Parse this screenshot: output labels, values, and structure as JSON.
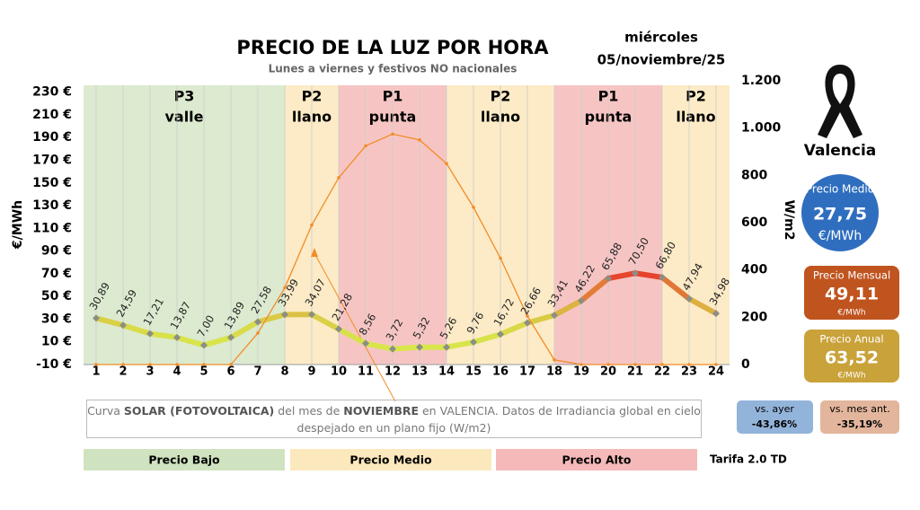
{
  "chart_data": {
    "type": "line",
    "title": "PRECIO DE LA LUZ POR HORA",
    "subtitle": "Lunes a viernes y festivos NO nacionales",
    "date_weekday": "miércoles",
    "date": "05/noviembre/25",
    "y_label": "€/MWh",
    "y2_label": "W/m2",
    "categories": [
      1,
      2,
      3,
      4,
      5,
      6,
      7,
      8,
      9,
      10,
      11,
      12,
      13,
      14,
      15,
      16,
      17,
      18,
      19,
      20,
      21,
      22,
      23,
      24
    ],
    "series": [
      {
        "name": "Precio",
        "color_low": "#d8e64a",
        "color_high": "#e8392b",
        "values": [
          30.89,
          24.59,
          17.21,
          13.87,
          7.0,
          13.89,
          27.58,
          33.99,
          34.07,
          21.28,
          8.56,
          3.72,
          5.32,
          5.26,
          9.76,
          16.72,
          26.66,
          33.41,
          46.22,
          65.88,
          70.5,
          66.8,
          47.94,
          34.98
        ],
        "value_labels": [
          "30,89",
          "24,59",
          "17,21",
          "13,87",
          "7,00",
          "13,89",
          "27,58",
          "33,99",
          "34,07",
          "21,28",
          "8,56",
          "3,72",
          "5,32",
          "5,26",
          "9,76",
          "16,72",
          "26,66",
          "33,41",
          "46,22",
          "65,88",
          "70,50",
          "66,80",
          "47,94",
          "34,98"
        ]
      },
      {
        "name": "Solar",
        "color": "#f28c28",
        "axis": "y2",
        "values": [
          0,
          0,
          0,
          0,
          0,
          0,
          133,
          325,
          590,
          790,
          925,
          975,
          950,
          850,
          665,
          450,
          205,
          20,
          0,
          0,
          0,
          0,
          0,
          0
        ]
      }
    ],
    "ylim": [
      -10,
      240
    ],
    "yticks": [
      {
        "value": -10,
        "label": "-10 €"
      },
      {
        "value": 10,
        "label": "10 €"
      },
      {
        "value": 30,
        "label": "30 €"
      },
      {
        "value": 50,
        "label": "50 €"
      },
      {
        "value": 70,
        "label": "70 €"
      },
      {
        "value": 90,
        "label": "90 €"
      },
      {
        "value": 110,
        "label": "110 €"
      },
      {
        "value": 130,
        "label": "130 €"
      },
      {
        "value": 150,
        "label": "150 €"
      },
      {
        "value": 170,
        "label": "170 €"
      },
      {
        "value": 190,
        "label": "190 €"
      },
      {
        "value": 210,
        "label": "210 €"
      },
      {
        "value": 230,
        "label": "230 €"
      }
    ],
    "y2lim": [
      0,
      1200
    ],
    "y2ticks": [
      0,
      200,
      400,
      600,
      800,
      {
        "value": 1000,
        "label": "1.000"
      },
      {
        "value": 1200,
        "label": "1.200"
      }
    ],
    "grid": "x",
    "periods": [
      {
        "code": "P3",
        "name": "valle",
        "from": 1,
        "to": 8,
        "color": "#dceacf"
      },
      {
        "code": "P2",
        "name": "llano",
        "from": 8,
        "to": 10,
        "color": "#fcebc6"
      },
      {
        "code": "P1",
        "name": "punta",
        "from": 10,
        "to": 14,
        "color": "#f6c5c3"
      },
      {
        "code": "P2",
        "name": "llano",
        "from": 14,
        "to": 18,
        "color": "#fcebc6"
      },
      {
        "code": "P1",
        "name": "punta",
        "from": 18,
        "to": 22,
        "color": "#f6c5c3"
      },
      {
        "code": "P2",
        "name": "llano",
        "from": 22,
        "to": 24,
        "color": "#fcebc6"
      }
    ],
    "note": [
      "Curva ",
      "SOLAR (FOTOVOLTAICA)",
      " del mes de ",
      "NOVIEMBRE",
      " en VALENCIA. Datos de Irradiancia global en cielo despejado en un plano fijo (W/m2)"
    ],
    "legend": [
      {
        "label": "Precio Bajo",
        "color": "#d0e3c0"
      },
      {
        "label": "Precio Medio",
        "color": "#fbe8bc"
      },
      {
        "label": "Precio Alto",
        "color": "#f4b9b8"
      }
    ],
    "tariff": "Tarifa 2.0 TD"
  },
  "summary": {
    "city": "Valencia",
    "mean_title": "Precio Medio",
    "mean": "27,75",
    "mean_unit": "€/MWh",
    "monthly_title": "Precio Mensual",
    "monthly": "49,11",
    "monthly_unit": "€/MWh",
    "annual_title": "Precio Anual",
    "annual": "63,52",
    "annual_unit": "€/MWh",
    "vs_day_title": "vs. ayer",
    "vs_day": "-43,86%",
    "vs_month_title": "vs. mes ant.",
    "vs_month": "-35,19%"
  }
}
